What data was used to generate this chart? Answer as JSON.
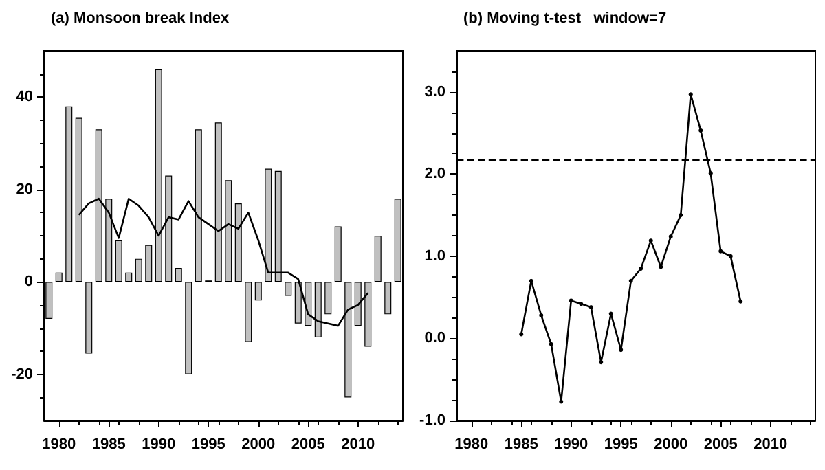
{
  "chart_data": [
    {
      "type": "bar",
      "title": "(a) Monsoon break Index",
      "xlim": [
        1978.5,
        2014.5
      ],
      "xticks": [
        1980,
        1985,
        1990,
        1995,
        2000,
        2005,
        2010
      ],
      "ylim": [
        -30,
        50
      ],
      "yticks": [
        -20,
        0,
        20,
        40
      ],
      "series": [
        {
          "type": "bar",
          "color": "#c0c0c0",
          "x": [
            1979,
            1980,
            1981,
            1982,
            1983,
            1984,
            1985,
            1986,
            1987,
            1988,
            1989,
            1990,
            1991,
            1992,
            1993,
            1994,
            1995,
            1996,
            1997,
            1998,
            1999,
            2000,
            2001,
            2002,
            2003,
            2004,
            2005,
            2006,
            2007,
            2008,
            2009,
            2010,
            2011,
            2012,
            2013,
            2014
          ],
          "values": [
            -8,
            2,
            38,
            35.5,
            -15.5,
            33,
            18,
            9,
            2,
            5,
            8,
            46,
            23,
            3,
            -20,
            33,
            0.3,
            34.5,
            22,
            17,
            -13,
            -4,
            24.5,
            24,
            -3,
            -9,
            -9.5,
            -12,
            -7,
            12,
            -25,
            -9.5,
            -14,
            10,
            -7,
            18
          ]
        },
        {
          "type": "line",
          "color": "#000000",
          "x": [
            1982,
            1983,
            1984,
            1985,
            1986,
            1987,
            1988,
            1989,
            1990,
            1991,
            1992,
            1993,
            1994,
            1995,
            1996,
            1997,
            1998,
            1999,
            2000,
            2001,
            2002,
            2003,
            2004,
            2005,
            2006,
            2007,
            2008,
            2009,
            2010,
            2011
          ],
          "values": [
            14.5,
            17,
            18,
            15,
            9.5,
            18,
            16.5,
            14,
            10,
            14,
            13.5,
            17.5,
            14,
            12.5,
            11,
            12.5,
            11.5,
            15,
            9,
            2,
            2,
            2,
            0.6,
            -7,
            -8.5,
            -9,
            -9.5,
            -6,
            -5,
            -2.4
          ]
        }
      ]
    },
    {
      "type": "line",
      "title": "(b) Moving t-test   window=7",
      "marker": "circle",
      "xlim": [
        1978.5,
        2014.5
      ],
      "xticks": [
        1980,
        1985,
        1990,
        1995,
        2000,
        2005,
        2010
      ],
      "ylim": [
        -1,
        3.5
      ],
      "yticks": [
        {
          "value": -1,
          "label": "-1.0"
        },
        {
          "value": 0,
          "label": "0.0"
        },
        {
          "value": 1,
          "label": "1.0"
        },
        {
          "value": 2,
          "label": "2.0"
        },
        {
          "value": 3,
          "label": "3.0"
        }
      ],
      "ref_lines": [
        {
          "axis": "y",
          "value": 2.17,
          "line_style": "dashed",
          "color": "#000000"
        }
      ],
      "series": [
        {
          "color": "#000000",
          "x": [
            1985,
            1986,
            1987,
            1988,
            1989,
            1990,
            1991,
            1992,
            1993,
            1994,
            1995,
            1996,
            1997,
            1998,
            1999,
            2000,
            2001,
            2002,
            2003,
            2004,
            2005,
            2006,
            2007
          ],
          "values": [
            0.05,
            0.7,
            0.28,
            -0.07,
            -0.77,
            0.46,
            0.42,
            0.38,
            -0.29,
            0.3,
            -0.14,
            0.7,
            0.85,
            1.19,
            0.87,
            1.24,
            1.5,
            2.97,
            2.53,
            2.01,
            1.06,
            1.0,
            0.45
          ]
        }
      ]
    }
  ]
}
